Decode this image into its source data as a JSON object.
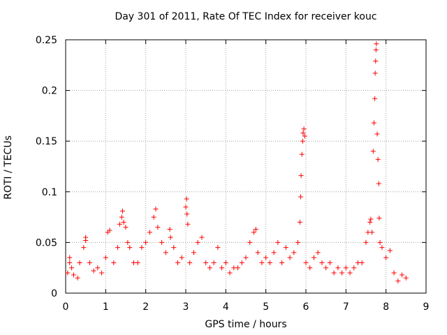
{
  "chart_data": {
    "type": "scatter",
    "title": "Day 301 of 2011, Rate Of TEC Index for receiver kouc",
    "xlabel": "GPS time / hours",
    "ylabel": "ROTI / TECUs",
    "xlim": [
      0,
      9
    ],
    "ylim": [
      0,
      0.25
    ],
    "xticks": [
      0,
      1,
      2,
      3,
      4,
      5,
      6,
      7,
      8,
      9
    ],
    "xtick_labels": [
      "0",
      "1",
      "2",
      "3",
      "4",
      "5",
      "6",
      "7",
      "8",
      "9"
    ],
    "yticks": [
      0,
      0.05,
      0.1,
      0.15,
      0.2,
      0.25
    ],
    "ytick_labels": [
      "0",
      "0.05",
      "0.1",
      "0.15",
      "0.2",
      "0.25"
    ],
    "grid": true,
    "marker": "+",
    "color": "#ff0000",
    "series": [
      {
        "name": "ROTI",
        "points": [
          [
            0.05,
            0.02
          ],
          [
            0.1,
            0.03
          ],
          [
            0.1,
            0.035
          ],
          [
            0.15,
            0.025
          ],
          [
            0.2,
            0.018
          ],
          [
            0.3,
            0.015
          ],
          [
            0.35,
            0.03
          ],
          [
            0.45,
            0.045
          ],
          [
            0.5,
            0.052
          ],
          [
            0.5,
            0.055
          ],
          [
            0.6,
            0.03
          ],
          [
            0.7,
            0.022
          ],
          [
            0.8,
            0.025
          ],
          [
            0.9,
            0.02
          ],
          [
            1.0,
            0.035
          ],
          [
            1.05,
            0.06
          ],
          [
            1.1,
            0.062
          ],
          [
            1.2,
            0.03
          ],
          [
            1.3,
            0.045
          ],
          [
            1.35,
            0.068
          ],
          [
            1.4,
            0.075
          ],
          [
            1.42,
            0.081
          ],
          [
            1.45,
            0.07
          ],
          [
            1.5,
            0.065
          ],
          [
            1.55,
            0.05
          ],
          [
            1.6,
            0.045
          ],
          [
            1.7,
            0.03
          ],
          [
            1.8,
            0.03
          ],
          [
            1.9,
            0.045
          ],
          [
            2.0,
            0.05
          ],
          [
            2.1,
            0.06
          ],
          [
            2.2,
            0.075
          ],
          [
            2.25,
            0.083
          ],
          [
            2.3,
            0.065
          ],
          [
            2.4,
            0.05
          ],
          [
            2.5,
            0.04
          ],
          [
            2.6,
            0.063
          ],
          [
            2.62,
            0.055
          ],
          [
            2.7,
            0.045
          ],
          [
            2.8,
            0.03
          ],
          [
            2.9,
            0.035
          ],
          [
            3.0,
            0.085
          ],
          [
            3.02,
            0.093
          ],
          [
            3.03,
            0.078
          ],
          [
            3.05,
            0.068
          ],
          [
            3.1,
            0.03
          ],
          [
            3.2,
            0.04
          ],
          [
            3.3,
            0.05
          ],
          [
            3.4,
            0.055
          ],
          [
            3.5,
            0.03
          ],
          [
            3.6,
            0.025
          ],
          [
            3.7,
            0.03
          ],
          [
            3.8,
            0.045
          ],
          [
            3.9,
            0.025
          ],
          [
            4.0,
            0.03
          ],
          [
            4.1,
            0.02
          ],
          [
            4.2,
            0.025
          ],
          [
            4.3,
            0.025
          ],
          [
            4.4,
            0.03
          ],
          [
            4.5,
            0.035
          ],
          [
            4.6,
            0.05
          ],
          [
            4.7,
            0.06
          ],
          [
            4.75,
            0.063
          ],
          [
            4.8,
            0.04
          ],
          [
            4.9,
            0.03
          ],
          [
            5.0,
            0.035
          ],
          [
            5.1,
            0.03
          ],
          [
            5.2,
            0.04
          ],
          [
            5.3,
            0.05
          ],
          [
            5.4,
            0.03
          ],
          [
            5.5,
            0.045
          ],
          [
            5.6,
            0.035
          ],
          [
            5.7,
            0.04
          ],
          [
            5.8,
            0.05
          ],
          [
            5.85,
            0.07
          ],
          [
            5.87,
            0.095
          ],
          [
            5.88,
            0.116
          ],
          [
            5.9,
            0.137
          ],
          [
            5.92,
            0.15
          ],
          [
            5.93,
            0.158
          ],
          [
            5.95,
            0.162
          ],
          [
            5.97,
            0.155
          ],
          [
            6.0,
            0.03
          ],
          [
            6.1,
            0.025
          ],
          [
            6.2,
            0.035
          ],
          [
            6.3,
            0.04
          ],
          [
            6.4,
            0.03
          ],
          [
            6.5,
            0.025
          ],
          [
            6.6,
            0.03
          ],
          [
            6.7,
            0.02
          ],
          [
            6.8,
            0.025
          ],
          [
            6.9,
            0.02
          ],
          [
            7.0,
            0.025
          ],
          [
            7.1,
            0.02
          ],
          [
            7.2,
            0.025
          ],
          [
            7.3,
            0.03
          ],
          [
            7.4,
            0.03
          ],
          [
            7.5,
            0.05
          ],
          [
            7.55,
            0.06
          ],
          [
            7.6,
            0.07
          ],
          [
            7.62,
            0.073
          ],
          [
            7.65,
            0.06
          ],
          [
            7.68,
            0.14
          ],
          [
            7.7,
            0.168
          ],
          [
            7.72,
            0.192
          ],
          [
            7.73,
            0.217
          ],
          [
            7.74,
            0.229
          ],
          [
            7.75,
            0.24
          ],
          [
            7.76,
            0.246
          ],
          [
            7.78,
            0.157
          ],
          [
            7.8,
            0.132
          ],
          [
            7.82,
            0.108
          ],
          [
            7.83,
            0.074
          ],
          [
            7.85,
            0.05
          ],
          [
            7.9,
            0.045
          ],
          [
            8.0,
            0.035
          ],
          [
            8.1,
            0.042
          ],
          [
            8.2,
            0.02
          ],
          [
            8.3,
            0.012
          ],
          [
            8.4,
            0.018
          ],
          [
            8.5,
            0.015
          ]
        ]
      }
    ]
  }
}
